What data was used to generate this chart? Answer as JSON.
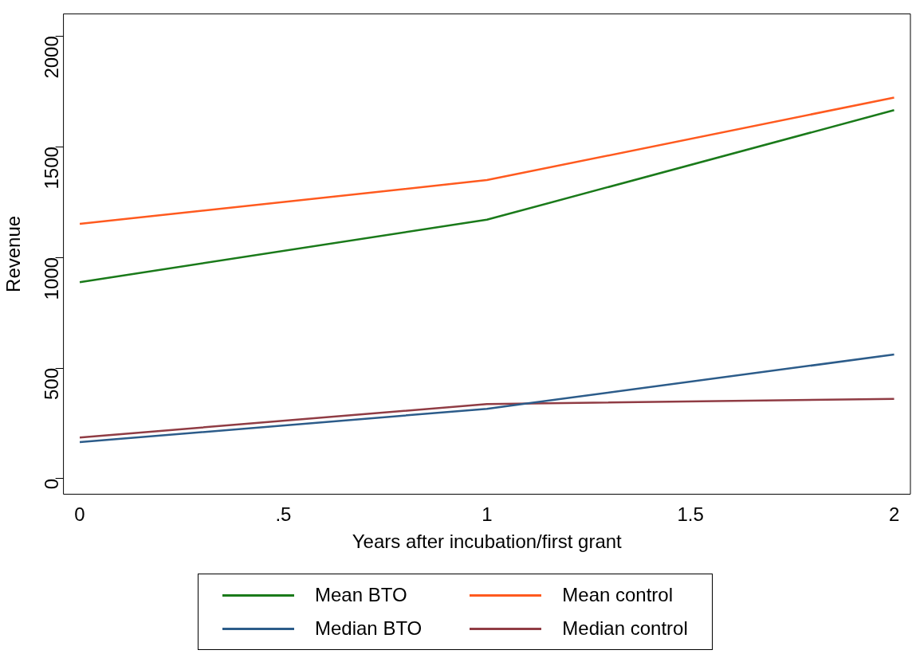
{
  "chart_data": {
    "type": "line",
    "xlabel": "Years after incubation/first grant",
    "ylabel": "Revenue",
    "x": [
      0,
      1,
      2
    ],
    "xlim": [
      -0.04,
      2.04
    ],
    "xticks": [
      0,
      {
        "value": 0.5,
        "label": ".5"
      },
      1,
      1.5,
      2
    ],
    "ylim": [
      -70,
      2100
    ],
    "yticks": [
      0,
      500,
      1000,
      1500,
      2000
    ],
    "grid": false,
    "legend": "bottom",
    "marker": "none",
    "line_style": "solid",
    "series": [
      {
        "name": "Mean BTO",
        "color": "#1a7a1a",
        "values": [
          888,
          1170,
          1665
        ]
      },
      {
        "name": "Mean control",
        "color": "#ff5a1f",
        "values": [
          1151,
          1349,
          1722
        ]
      },
      {
        "name": "Median BTO",
        "color": "#2c5c8a",
        "values": [
          165,
          316,
          561
        ]
      },
      {
        "name": "Median control",
        "color": "#903c44",
        "values": [
          186,
          337,
          361
        ]
      }
    ]
  }
}
